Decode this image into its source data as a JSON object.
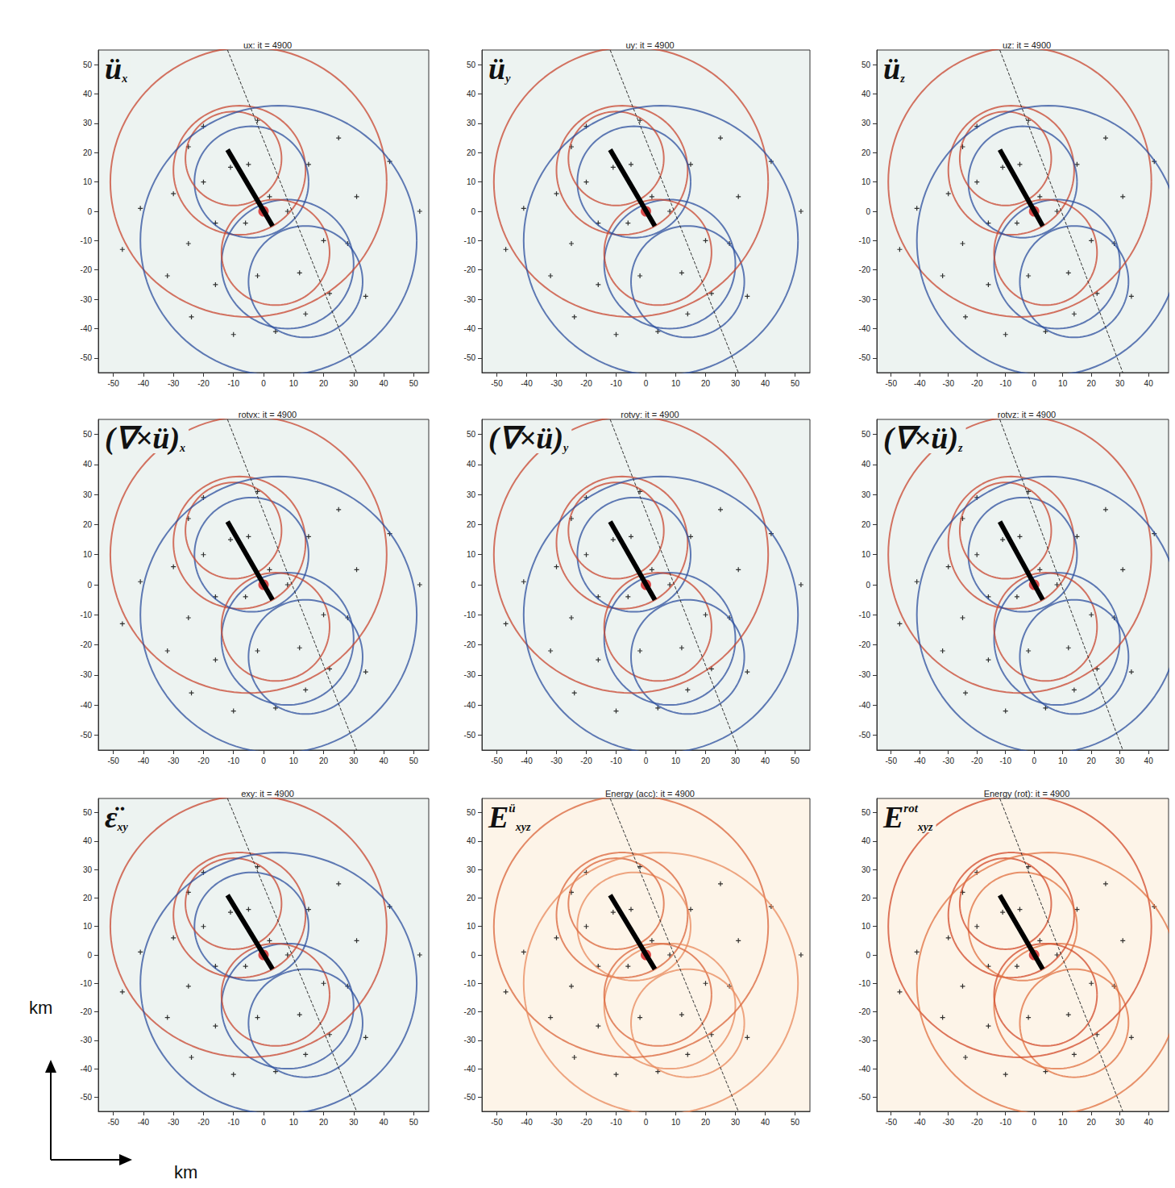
{
  "chart_data": [
    {
      "type": "scatter",
      "title": "ux: it = 4900",
      "annotation": {
        "main": "ü",
        "sup": "",
        "sub": "x"
      },
      "colors": [
        "#c8452f",
        "#2c4f9e"
      ],
      "xlim": [
        -55,
        55
      ],
      "ylim": [
        -55,
        55
      ],
      "xticks": [
        -50,
        -40,
        -30,
        -20,
        -10,
        0,
        10,
        20,
        30,
        40,
        50
      ],
      "yticks": [
        -50,
        -40,
        -30,
        -20,
        -10,
        0,
        10,
        20,
        30,
        40,
        50
      ]
    },
    {
      "type": "scatter",
      "title": "uy: it = 4900",
      "annotation": {
        "main": "ü",
        "sup": "",
        "sub": "y"
      },
      "colors": [
        "#c8452f",
        "#2c4f9e"
      ],
      "xlim": [
        -55,
        55
      ],
      "ylim": [
        -55,
        55
      ],
      "xticks": [
        -50,
        -40,
        -30,
        -20,
        -10,
        0,
        10,
        20,
        30,
        40,
        50
      ],
      "yticks": [
        -50,
        -40,
        -30,
        -20,
        -10,
        0,
        10,
        20,
        30,
        40,
        50
      ]
    },
    {
      "type": "scatter",
      "title": "uz: it = 4900",
      "annotation": {
        "main": "ü",
        "sup": "",
        "sub": "z"
      },
      "colors": [
        "#c8452f",
        "#2c4f9e"
      ],
      "xlim": [
        -55,
        47
      ],
      "ylim": [
        -55,
        55
      ],
      "xticks": [
        -50,
        -40,
        -30,
        -20,
        -10,
        0,
        10,
        20,
        30,
        40
      ],
      "yticks": [
        -50,
        -40,
        -30,
        -20,
        -10,
        0,
        10,
        20,
        30,
        40,
        50
      ]
    },
    {
      "type": "scatter",
      "title": "rotvx: it = 4900",
      "annotation": {
        "main": "(∇×ü)",
        "sup": "",
        "sub": "x"
      },
      "colors": [
        "#c8452f",
        "#2c4f9e"
      ],
      "xlim": [
        -55,
        55
      ],
      "ylim": [
        -55,
        55
      ],
      "xticks": [
        -50,
        -40,
        -30,
        -20,
        -10,
        0,
        10,
        20,
        30,
        40,
        50
      ],
      "yticks": [
        -50,
        -40,
        -30,
        -20,
        -10,
        0,
        10,
        20,
        30,
        40,
        50
      ]
    },
    {
      "type": "scatter",
      "title": "rotvy: it = 4900",
      "annotation": {
        "main": "(∇×ü)",
        "sup": "",
        "sub": "y"
      },
      "colors": [
        "#c8452f",
        "#2c4f9e"
      ],
      "xlim": [
        -55,
        55
      ],
      "ylim": [
        -55,
        55
      ],
      "xticks": [
        -50,
        -40,
        -30,
        -20,
        -10,
        0,
        10,
        20,
        30,
        40,
        50
      ],
      "yticks": [
        -50,
        -40,
        -30,
        -20,
        -10,
        0,
        10,
        20,
        30,
        40,
        50
      ]
    },
    {
      "type": "scatter",
      "title": "rotvz: it = 4900",
      "annotation": {
        "main": "(∇×ü)",
        "sup": "",
        "sub": "z"
      },
      "colors": [
        "#c8452f",
        "#2c4f9e"
      ],
      "xlim": [
        -55,
        47
      ],
      "ylim": [
        -55,
        55
      ],
      "xticks": [
        -50,
        -40,
        -30,
        -20,
        -10,
        0,
        10,
        20,
        30,
        40
      ],
      "yticks": [
        -50,
        -40,
        -30,
        -20,
        -10,
        0,
        10,
        20,
        30,
        40,
        50
      ]
    },
    {
      "type": "scatter",
      "title": "exy: it = 4900",
      "annotation": {
        "main": "ε̈",
        "sup": "",
        "sub": "xy"
      },
      "colors": [
        "#c8452f",
        "#2c4f9e"
      ],
      "xlim": [
        -55,
        55
      ],
      "ylim": [
        -55,
        55
      ],
      "xticks": [
        -50,
        -40,
        -30,
        -20,
        -10,
        0,
        10,
        20,
        30,
        40,
        50
      ],
      "yticks": [
        -50,
        -40,
        -30,
        -20,
        -10,
        0,
        10,
        20,
        30,
        40,
        50
      ]
    },
    {
      "type": "scatter",
      "title": "Energy (acc): it = 4900",
      "annotation": {
        "main": "E",
        "sup": "ü",
        "sub": "xyz"
      },
      "colors": [
        "#d9643a",
        "#e88a5c"
      ],
      "xlim": [
        -55,
        55
      ],
      "ylim": [
        -55,
        55
      ],
      "xticks": [
        -50,
        -40,
        -30,
        -20,
        -10,
        0,
        10,
        20,
        30,
        40,
        50
      ],
      "yticks": [
        -50,
        -40,
        -30,
        -20,
        -10,
        0,
        10,
        20,
        30,
        40,
        50
      ]
    },
    {
      "type": "scatter",
      "title": "Energy (rot): it = 4900",
      "annotation": {
        "main": "E",
        "sup": "rot",
        "sub": "xyz"
      },
      "colors": [
        "#d14a2a",
        "#e07040"
      ],
      "xlim": [
        -55,
        47
      ],
      "ylim": [
        -55,
        55
      ],
      "xticks": [
        -50,
        -40,
        -30,
        -20,
        -10,
        0,
        10,
        20,
        30,
        40
      ],
      "yticks": [
        -50,
        -40,
        -30,
        -20,
        -10,
        0,
        10,
        20,
        30,
        40,
        50
      ]
    }
  ],
  "overlay": {
    "stations": {
      "x": [
        -20,
        -2,
        -25,
        -30,
        -20,
        -11,
        -5,
        15,
        2,
        -16,
        -6,
        8,
        20,
        28,
        -25,
        -16,
        -2,
        12,
        22,
        -24,
        -10,
        4,
        14,
        34,
        31,
        25,
        42,
        52,
        -41,
        -47,
        -32
      ],
      "y": [
        29,
        31,
        22,
        6,
        10,
        15,
        16,
        16,
        5,
        -4,
        -4,
        0,
        -10,
        -11,
        -11,
        -25,
        -22,
        -21,
        -28,
        -36,
        -42,
        -41,
        -35,
        -29,
        5,
        25,
        17,
        0,
        1,
        -13,
        -22
      ]
    },
    "fault": {
      "x": [
        -12,
        3
      ],
      "y": [
        21,
        -5
      ]
    },
    "epicenter": {
      "x": 0,
      "y": 0
    },
    "profile": {
      "x": [
        -12,
        31
      ],
      "y": [
        55,
        -55
      ]
    },
    "wavefronts": [
      {
        "x": -8,
        "y": 14,
        "r": 22
      },
      {
        "x": -4,
        "y": 10,
        "r": 19
      },
      {
        "x": -10,
        "y": 18,
        "r": 16
      },
      {
        "x": 8,
        "y": -18,
        "r": 22
      },
      {
        "x": 4,
        "y": -14,
        "r": 18
      },
      {
        "x": 14,
        "y": -24,
        "r": 19
      },
      {
        "x": -5,
        "y": 10,
        "r": 46
      },
      {
        "x": 5,
        "y": -10,
        "r": 46
      }
    ]
  },
  "axis_labels": {
    "x": "km",
    "y": "km"
  }
}
